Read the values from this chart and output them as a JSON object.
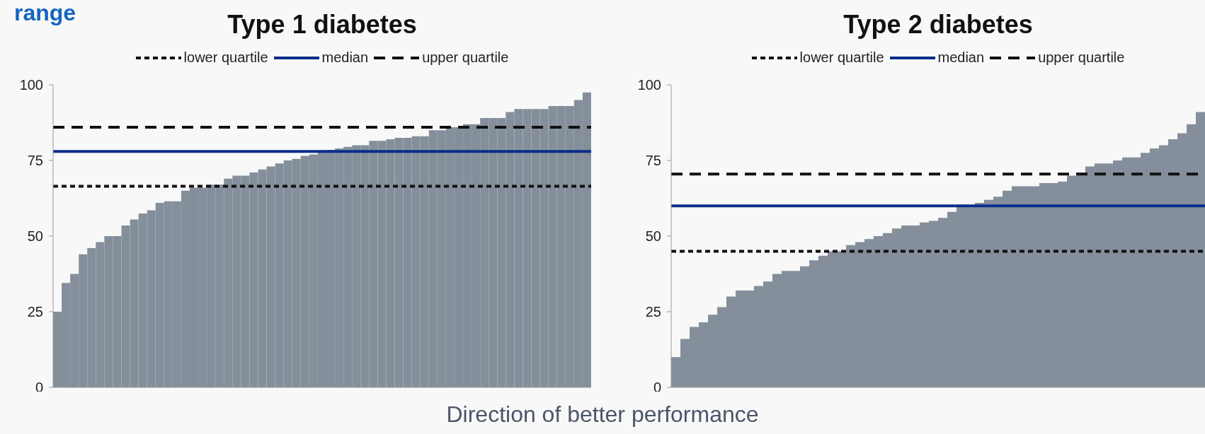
{
  "chart_data": [
    {
      "type": "bar",
      "title": "Type 1 diabetes",
      "annotations": [
        "range",
        "Direction of better performance"
      ],
      "categories": [
        null,
        null,
        null,
        null,
        null,
        null,
        null,
        null,
        null,
        null,
        null,
        null,
        null,
        null,
        null,
        null,
        null,
        null,
        null,
        null,
        null,
        null,
        null,
        null,
        null,
        null,
        null,
        null,
        null,
        null,
        null,
        null,
        null,
        null,
        null,
        null,
        null,
        null,
        null,
        null,
        null,
        null,
        null,
        null,
        null,
        null,
        null,
        null,
        null,
        null,
        null,
        null,
        null,
        null,
        null,
        null,
        null,
        null,
        null,
        null,
        null,
        null,
        null
      ],
      "values": [
        25,
        34.5,
        37.5,
        44,
        46,
        48,
        50,
        50,
        53.5,
        55.5,
        57.5,
        58.5,
        61,
        61.5,
        61.5,
        65,
        66,
        66,
        67,
        67,
        69,
        70,
        70,
        71,
        72,
        73,
        74,
        75,
        75.5,
        76.5,
        77,
        78,
        78.5,
        79,
        79.5,
        80,
        80,
        81.5,
        81.5,
        82,
        82.5,
        82.5,
        83,
        83,
        85,
        85,
        86,
        86,
        87,
        87,
        89,
        89,
        89,
        91,
        92,
        92,
        92,
        92,
        93,
        93,
        93,
        95,
        97.5
      ],
      "color": "#848f9b",
      "ylim": [
        0,
        100
      ],
      "yticks": [
        0,
        25,
        50,
        75,
        100
      ],
      "tick_labels": "y",
      "grid": false,
      "legend": "top",
      "ref_lines": [
        {
          "axis": "y",
          "value": 66.5,
          "label": "lower quartile",
          "color": "#111111",
          "line_style": "dotted"
        },
        {
          "axis": "y",
          "value": 78,
          "label": "median",
          "color": "#0b2e8a",
          "line_style": "solid"
        },
        {
          "axis": "y",
          "value": 86,
          "label": "upper quartile",
          "color": "#111111",
          "line_style": "dashed"
        }
      ]
    },
    {
      "type": "bar",
      "title": "Type 2 diabetes",
      "categories": [
        null,
        null,
        null,
        null,
        null,
        null,
        null,
        null,
        null,
        null,
        null,
        null,
        null,
        null,
        null,
        null,
        null,
        null,
        null,
        null,
        null,
        null,
        null,
        null,
        null,
        null,
        null,
        null,
        null,
        null,
        null,
        null,
        null,
        null,
        null,
        null,
        null,
        null,
        null,
        null,
        null,
        null,
        null,
        null,
        null,
        null,
        null,
        null,
        null,
        null,
        null,
        null,
        null,
        null,
        null,
        null,
        null,
        null
      ],
      "values": [
        10,
        16,
        20,
        21.5,
        24,
        26.5,
        30,
        32,
        32,
        33.5,
        35,
        37.5,
        38.5,
        38.5,
        40,
        42,
        43.5,
        45,
        45,
        47,
        48,
        49,
        50,
        51,
        52.5,
        53.5,
        53.5,
        54.5,
        55,
        56,
        58,
        60,
        60,
        61,
        62,
        63,
        65,
        66.5,
        66.5,
        66.5,
        67.5,
        67.5,
        68,
        70,
        71,
        73,
        74,
        74,
        75,
        76,
        76,
        77.5,
        79,
        80,
        82,
        84,
        87,
        91
      ],
      "color": "#848f9b",
      "ylim": [
        0,
        100
      ],
      "yticks": [
        0,
        25,
        50,
        75,
        100
      ],
      "tick_labels": "y",
      "grid": false,
      "legend": "top",
      "ref_lines": [
        {
          "axis": "y",
          "value": 45,
          "label": "lower quartile",
          "color": "#111111",
          "line_style": "dotted"
        },
        {
          "axis": "y",
          "value": 60,
          "label": "median",
          "color": "#0b2e8a",
          "line_style": "solid"
        },
        {
          "axis": "y",
          "value": 70.5,
          "label": "upper quartile",
          "color": "#111111",
          "line_style": "dashed"
        }
      ]
    }
  ]
}
